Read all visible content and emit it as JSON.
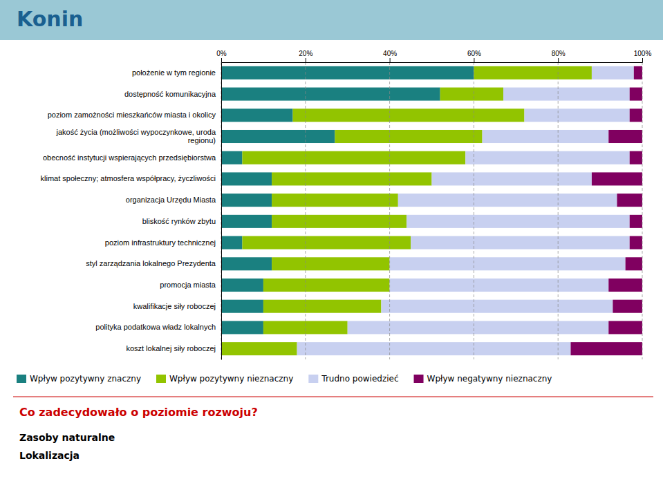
{
  "chart_data": {
    "type": "bar",
    "orientation": "horizontal",
    "stacked": true,
    "title": "Konin",
    "categories": [
      "położenie w tym regionie",
      "dostępność komunikacyjna",
      "poziom zamożności mieszkańców miasta i okolicy",
      "jakość życia (możliwości wypoczynkowe, uroda\nregionu)",
      "obecność instytucji wspierających przedsiębiorstwa",
      "klimat społeczny; atmosfera współpracy, życzliwości",
      "organizacja Urzędu Miasta",
      "bliskość rynków zbytu",
      "poziom infrastruktury technicznej",
      "styl zarządzania lokalnego Prezydenta",
      "promocja miasta",
      "kwalifikacje siły roboczej",
      "polityka podatkowa władz lokalnych",
      "koszt lokalnej siły roboczej"
    ],
    "series": [
      {
        "name": "Wpływ pozytywny znaczny",
        "color": "#1a8080",
        "values": [
          60,
          52,
          17,
          27,
          5,
          12,
          12,
          12,
          5,
          12,
          10,
          10,
          10,
          0
        ]
      },
      {
        "name": "Wpływ pozytywny nieznaczny",
        "color": "#92c400",
        "values": [
          28,
          15,
          55,
          35,
          53,
          38,
          30,
          32,
          40,
          28,
          30,
          28,
          20,
          18
        ]
      },
      {
        "name": "Trudno powiedzieć",
        "color": "#c8d0f0",
        "values": [
          10,
          30,
          25,
          30,
          39,
          38,
          52,
          53,
          52,
          56,
          52,
          55,
          62,
          65
        ]
      },
      {
        "name": "Wpływ negatywny nieznaczny",
        "color": "#800060",
        "values": [
          2,
          3,
          3,
          8,
          3,
          12,
          6,
          3,
          3,
          4,
          8,
          7,
          8,
          17
        ]
      }
    ],
    "xlim": [
      0,
      100
    ],
    "xticks": [
      {
        "value": 0,
        "label": "0%"
      },
      {
        "value": 20,
        "label": "20%"
      },
      {
        "value": 40,
        "label": "40%"
      },
      {
        "value": 60,
        "label": "60%"
      },
      {
        "value": 80,
        "label": "80%"
      },
      {
        "value": 100,
        "label": "100%"
      }
    ],
    "grid": true,
    "legend": "bottom",
    "annotations": [
      "Co zadecydowało o poziomie rozwoju?",
      "Zasoby naturalne",
      "Lokalizacja"
    ]
  }
}
